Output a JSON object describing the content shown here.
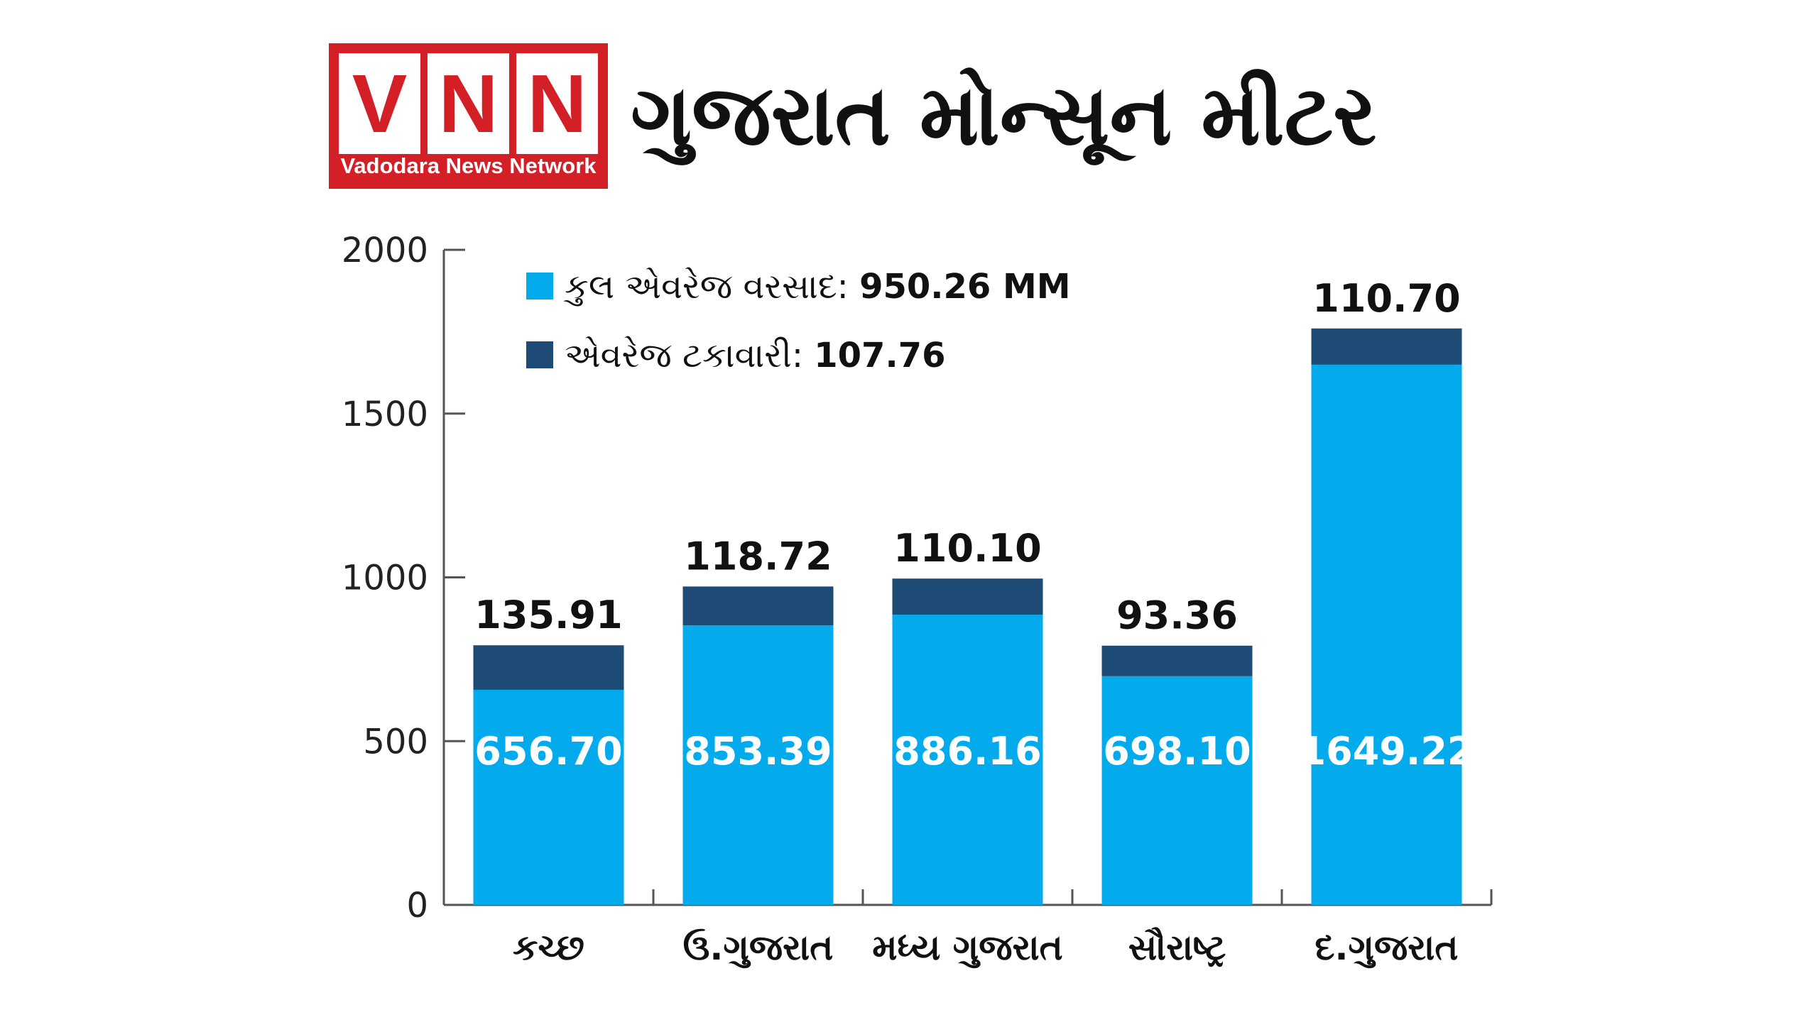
{
  "logo": {
    "letters": [
      "V",
      "N",
      "N"
    ],
    "subtitle": "Vadodara News Network",
    "bg_color": "#d32027"
  },
  "headline": "ગુજરાત મોન્સૂન મીટર",
  "chart_data": {
    "type": "bar",
    "stacked": true,
    "categories": [
      "કચ્છ",
      "ઉ.ગુજરાત",
      "મધ્ય ગુજરાત",
      "સૌરાષ્ટ્ર",
      "દ.ગુજરાત"
    ],
    "series": [
      {
        "values": [
          656.7,
          853.39,
          886.16,
          698.1,
          1649.22
        ],
        "labels": [
          "656.70",
          "853.39",
          "886.16",
          "698.10",
          "1649.22"
        ],
        "color": "#04abec"
      },
      {
        "values": [
          135.91,
          118.72,
          110.1,
          93.36,
          110.7
        ],
        "labels": [
          "135.91",
          "118.72",
          "110.10",
          "93.36",
          "110.70"
        ],
        "color": "#1d4b75"
      }
    ],
    "legend": [
      {
        "text": "કુલ એવરેજ વરસાદ:",
        "value": "950.26 MM",
        "color": "#04abec"
      },
      {
        "text": "એવરેજ ટકાવારી:",
        "value": "107.76",
        "color": "#1d4b75"
      }
    ],
    "legend_position": "top-left",
    "yticks": [
      0,
      500,
      1000,
      1500,
      2000
    ],
    "ylim": [
      0,
      2000
    ],
    "grid": false
  }
}
